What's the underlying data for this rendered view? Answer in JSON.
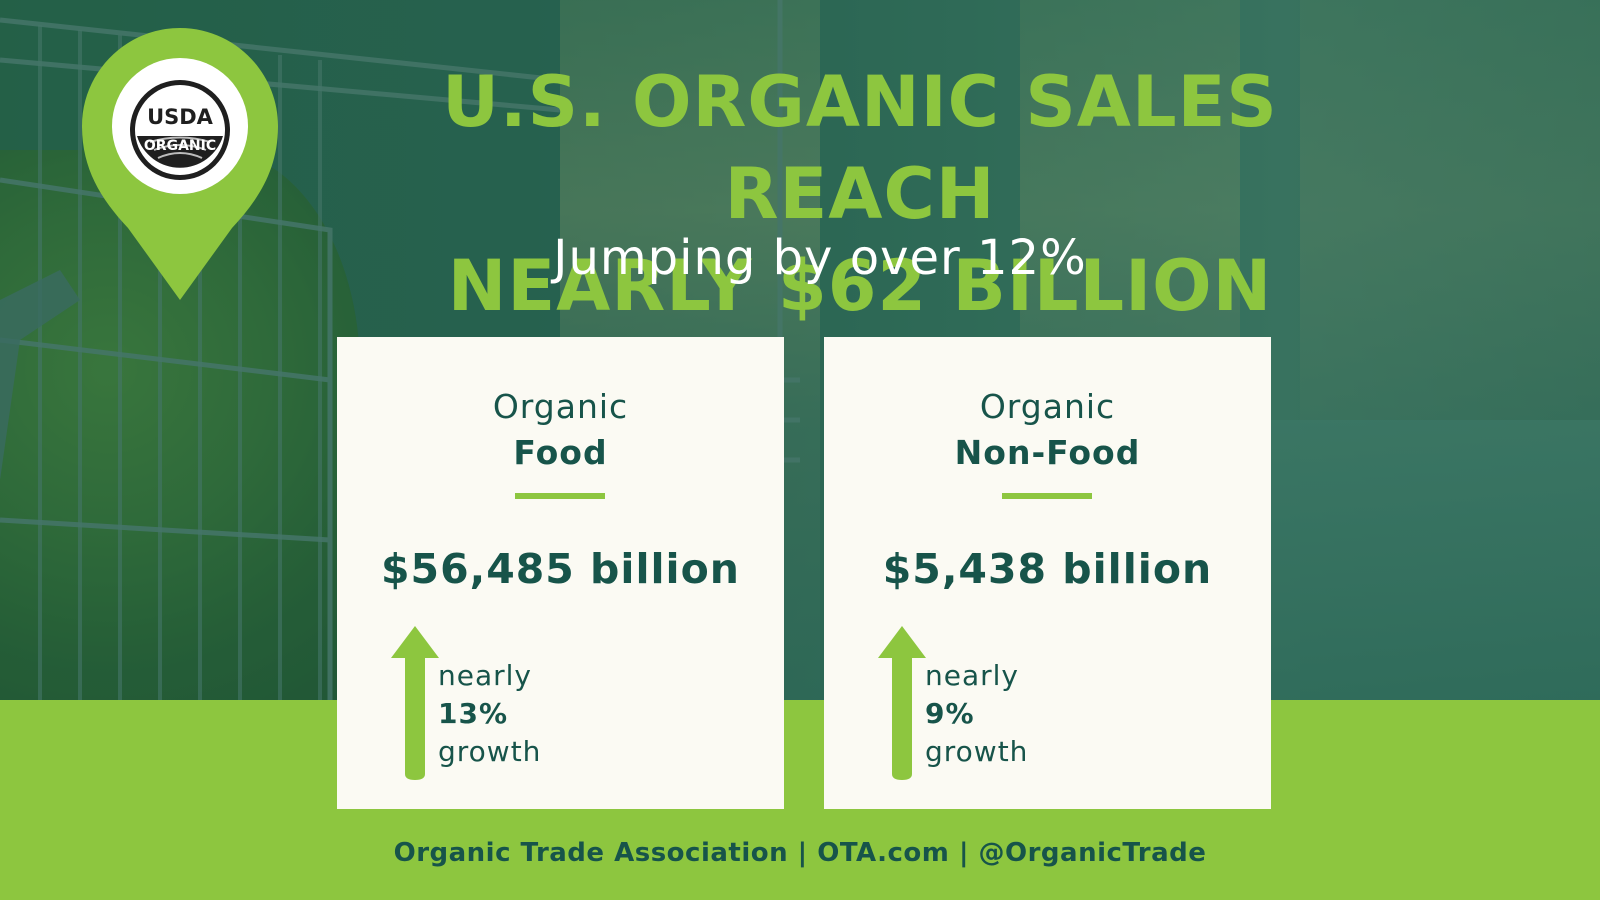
{
  "badge": {
    "line1": "USDA",
    "line2": "ORGANIC"
  },
  "headline": {
    "line1": "U.S. ORGANIC SALES REACH",
    "line2": "NEARLY $62 BILLION"
  },
  "subheadline": "Jumping by over 12%",
  "cards": [
    {
      "label": "Organic",
      "category": "Food",
      "amount": "$56,485 billion",
      "growth_prefix": "nearly",
      "growth_percent": "13%",
      "growth_suffix": "growth"
    },
    {
      "label": "Organic",
      "category": "Non-Food",
      "amount": "$5,438 billion",
      "growth_prefix": "nearly",
      "growth_percent": "9%",
      "growth_suffix": "growth"
    }
  ],
  "footer": "Organic Trade Association | OTA.com | @OrganicTrade",
  "colors": {
    "accent_green": "#8dc63f",
    "dark_teal": "#17544a",
    "card_background": "#fbfaf3",
    "white": "#ffffff"
  }
}
